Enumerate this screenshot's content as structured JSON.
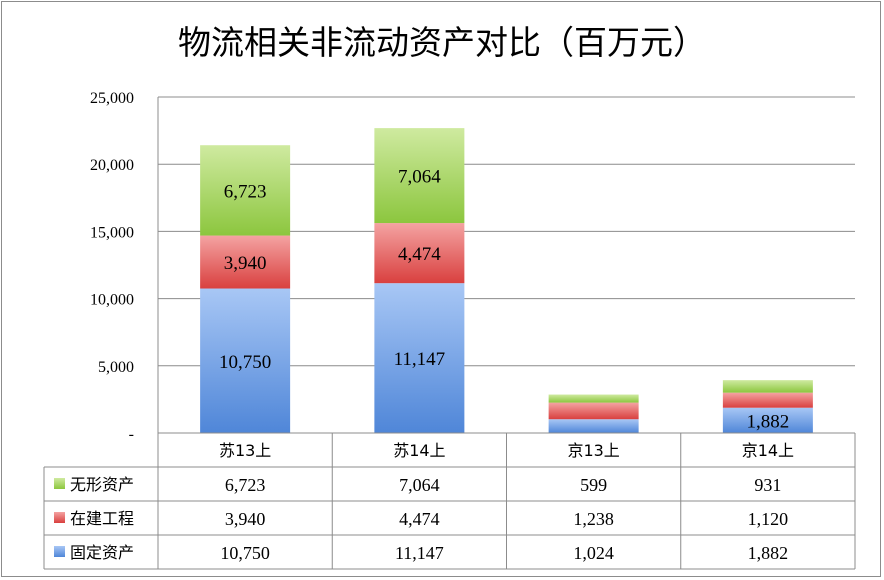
{
  "chart_data": {
    "type": "stacked-bar",
    "title": "物流相关非流动资产对比（百万元）",
    "categories": [
      "苏13上",
      "苏14上",
      "京13上",
      "京14上"
    ],
    "series": [
      {
        "name": "固定资产",
        "values": [
          10750,
          11147,
          1024,
          1882
        ],
        "color": "#4f86d8",
        "light": "#a8c7f5"
      },
      {
        "name": "在建工程",
        "values": [
          3940,
          4474,
          1238,
          1120
        ],
        "color": "#d9403f",
        "light": "#f4a3a2"
      },
      {
        "name": "无形资产",
        "values": [
          6723,
          7064,
          599,
          931
        ],
        "color": "#8cc63e",
        "light": "#cfeaa0"
      }
    ],
    "table_order": [
      "无形资产",
      "在建工程",
      "固定资产"
    ],
    "table_values": {
      "无形资产": [
        "6,723",
        "7,064",
        "599",
        "931"
      ],
      "在建工程": [
        "3,940",
        "4,474",
        "1,238",
        "1,120"
      ],
      "固定资产": [
        "10,750",
        "11,147",
        "1,024",
        "1,882"
      ]
    },
    "data_labels": [
      {
        "series": "固定资产",
        "category": "苏13上",
        "text": "10,750"
      },
      {
        "series": "在建工程",
        "category": "苏13上",
        "text": "3,940"
      },
      {
        "series": "无形资产",
        "category": "苏13上",
        "text": "6,723"
      },
      {
        "series": "固定资产",
        "category": "苏14上",
        "text": "11,147"
      },
      {
        "series": "在建工程",
        "category": "苏14上",
        "text": "4,474"
      },
      {
        "series": "无形资产",
        "category": "苏14上",
        "text": "7,064"
      },
      {
        "series": "固定资产",
        "category": "京14上",
        "text": "1,882"
      }
    ],
    "y_ticks": [
      {
        "value": 0,
        "label": "-"
      },
      {
        "value": 5000,
        "label": "5,000"
      },
      {
        "value": 10000,
        "label": "10,000"
      },
      {
        "value": 15000,
        "label": "15,000"
      },
      {
        "value": 20000,
        "label": "20,000"
      },
      {
        "value": 25000,
        "label": "25,000"
      }
    ],
    "ylim": [
      0,
      25000
    ],
    "grid": true,
    "legend": "table"
  }
}
